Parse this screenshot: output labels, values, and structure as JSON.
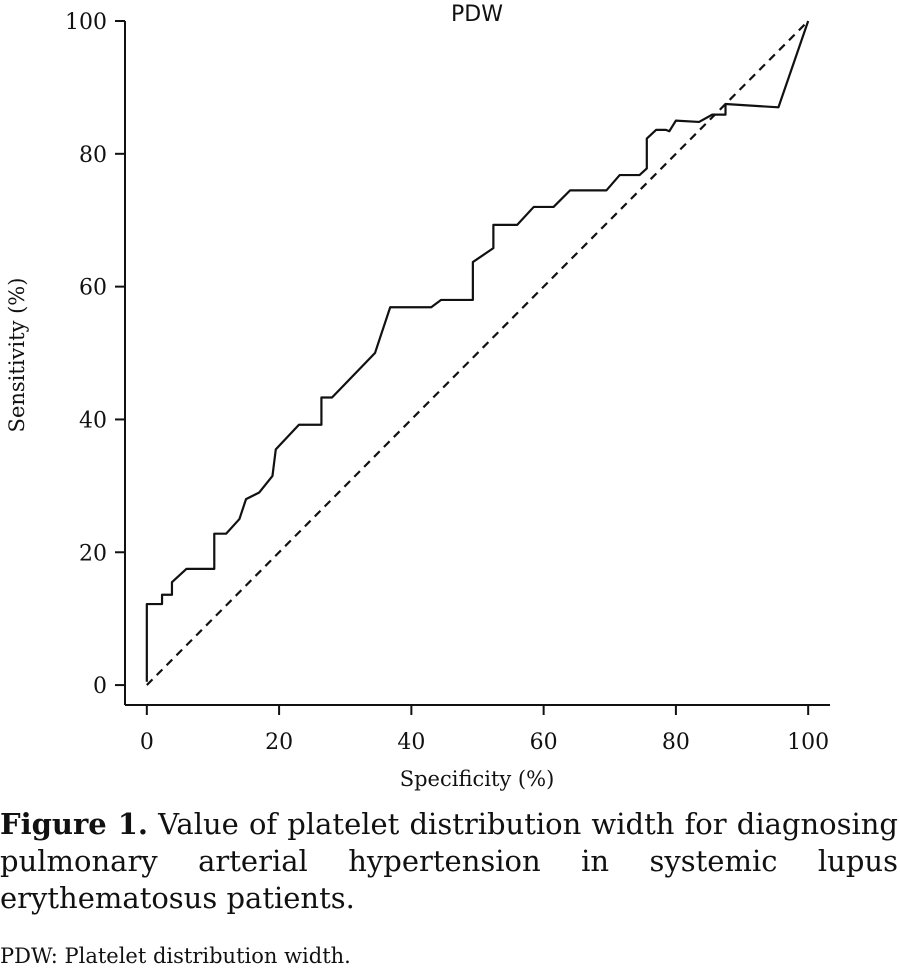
{
  "chart_data": {
    "type": "line",
    "title": "PDW",
    "xlabel": "Specificity (%)",
    "ylabel": "Sensitivity (%)",
    "xlim": [
      -3.3,
      103.3
    ],
    "ylim": [
      -3,
      100
    ],
    "xticks": [
      0,
      20,
      40,
      60,
      80,
      100
    ],
    "yticks": [
      0,
      20,
      40,
      60,
      80,
      100
    ],
    "series": [
      {
        "color": "#111111",
        "dash": false,
        "x": [
          0,
          0,
          2.3,
          2.3,
          3.8,
          3.8,
          6,
          10.2,
          10.2,
          12,
          14,
          15,
          17,
          19,
          19.5,
          23,
          26.4,
          26.4,
          28,
          34.5,
          36.8,
          43,
          44.5,
          49.3,
          49.3,
          52.4,
          52.4,
          56,
          58.5,
          61.5,
          64,
          69.5,
          71.5,
          74.5,
          75.6,
          75.6,
          77,
          78.5,
          79,
          80,
          83.5,
          85.5,
          87.5,
          87.5,
          95.5,
          100
        ],
        "values": [
          0.5,
          12.2,
          12.2,
          13.6,
          13.6,
          15.5,
          17.5,
          17.5,
          22.8,
          22.8,
          25,
          28,
          29,
          31.5,
          35.5,
          39.2,
          39.2,
          43.3,
          43.3,
          50,
          56.9,
          56.9,
          58,
          58,
          63.7,
          65.8,
          69.3,
          69.3,
          72,
          72,
          74.5,
          74.5,
          76.8,
          76.8,
          77.8,
          82.3,
          83.6,
          83.6,
          83.4,
          85,
          84.8,
          85.9,
          85.9,
          87.5,
          87,
          100
        ]
      },
      {
        "color": "#111111",
        "dash": true,
        "x": [
          0,
          100
        ],
        "values": [
          0,
          100
        ]
      }
    ]
  },
  "caption": {
    "label": "Figure 1.",
    "text": "Value of platelet distribution width for diagnosing pulmonary arterial hypertension in systemic lupus erythematosus patients."
  },
  "note": "PDW: Platelet distribution width."
}
